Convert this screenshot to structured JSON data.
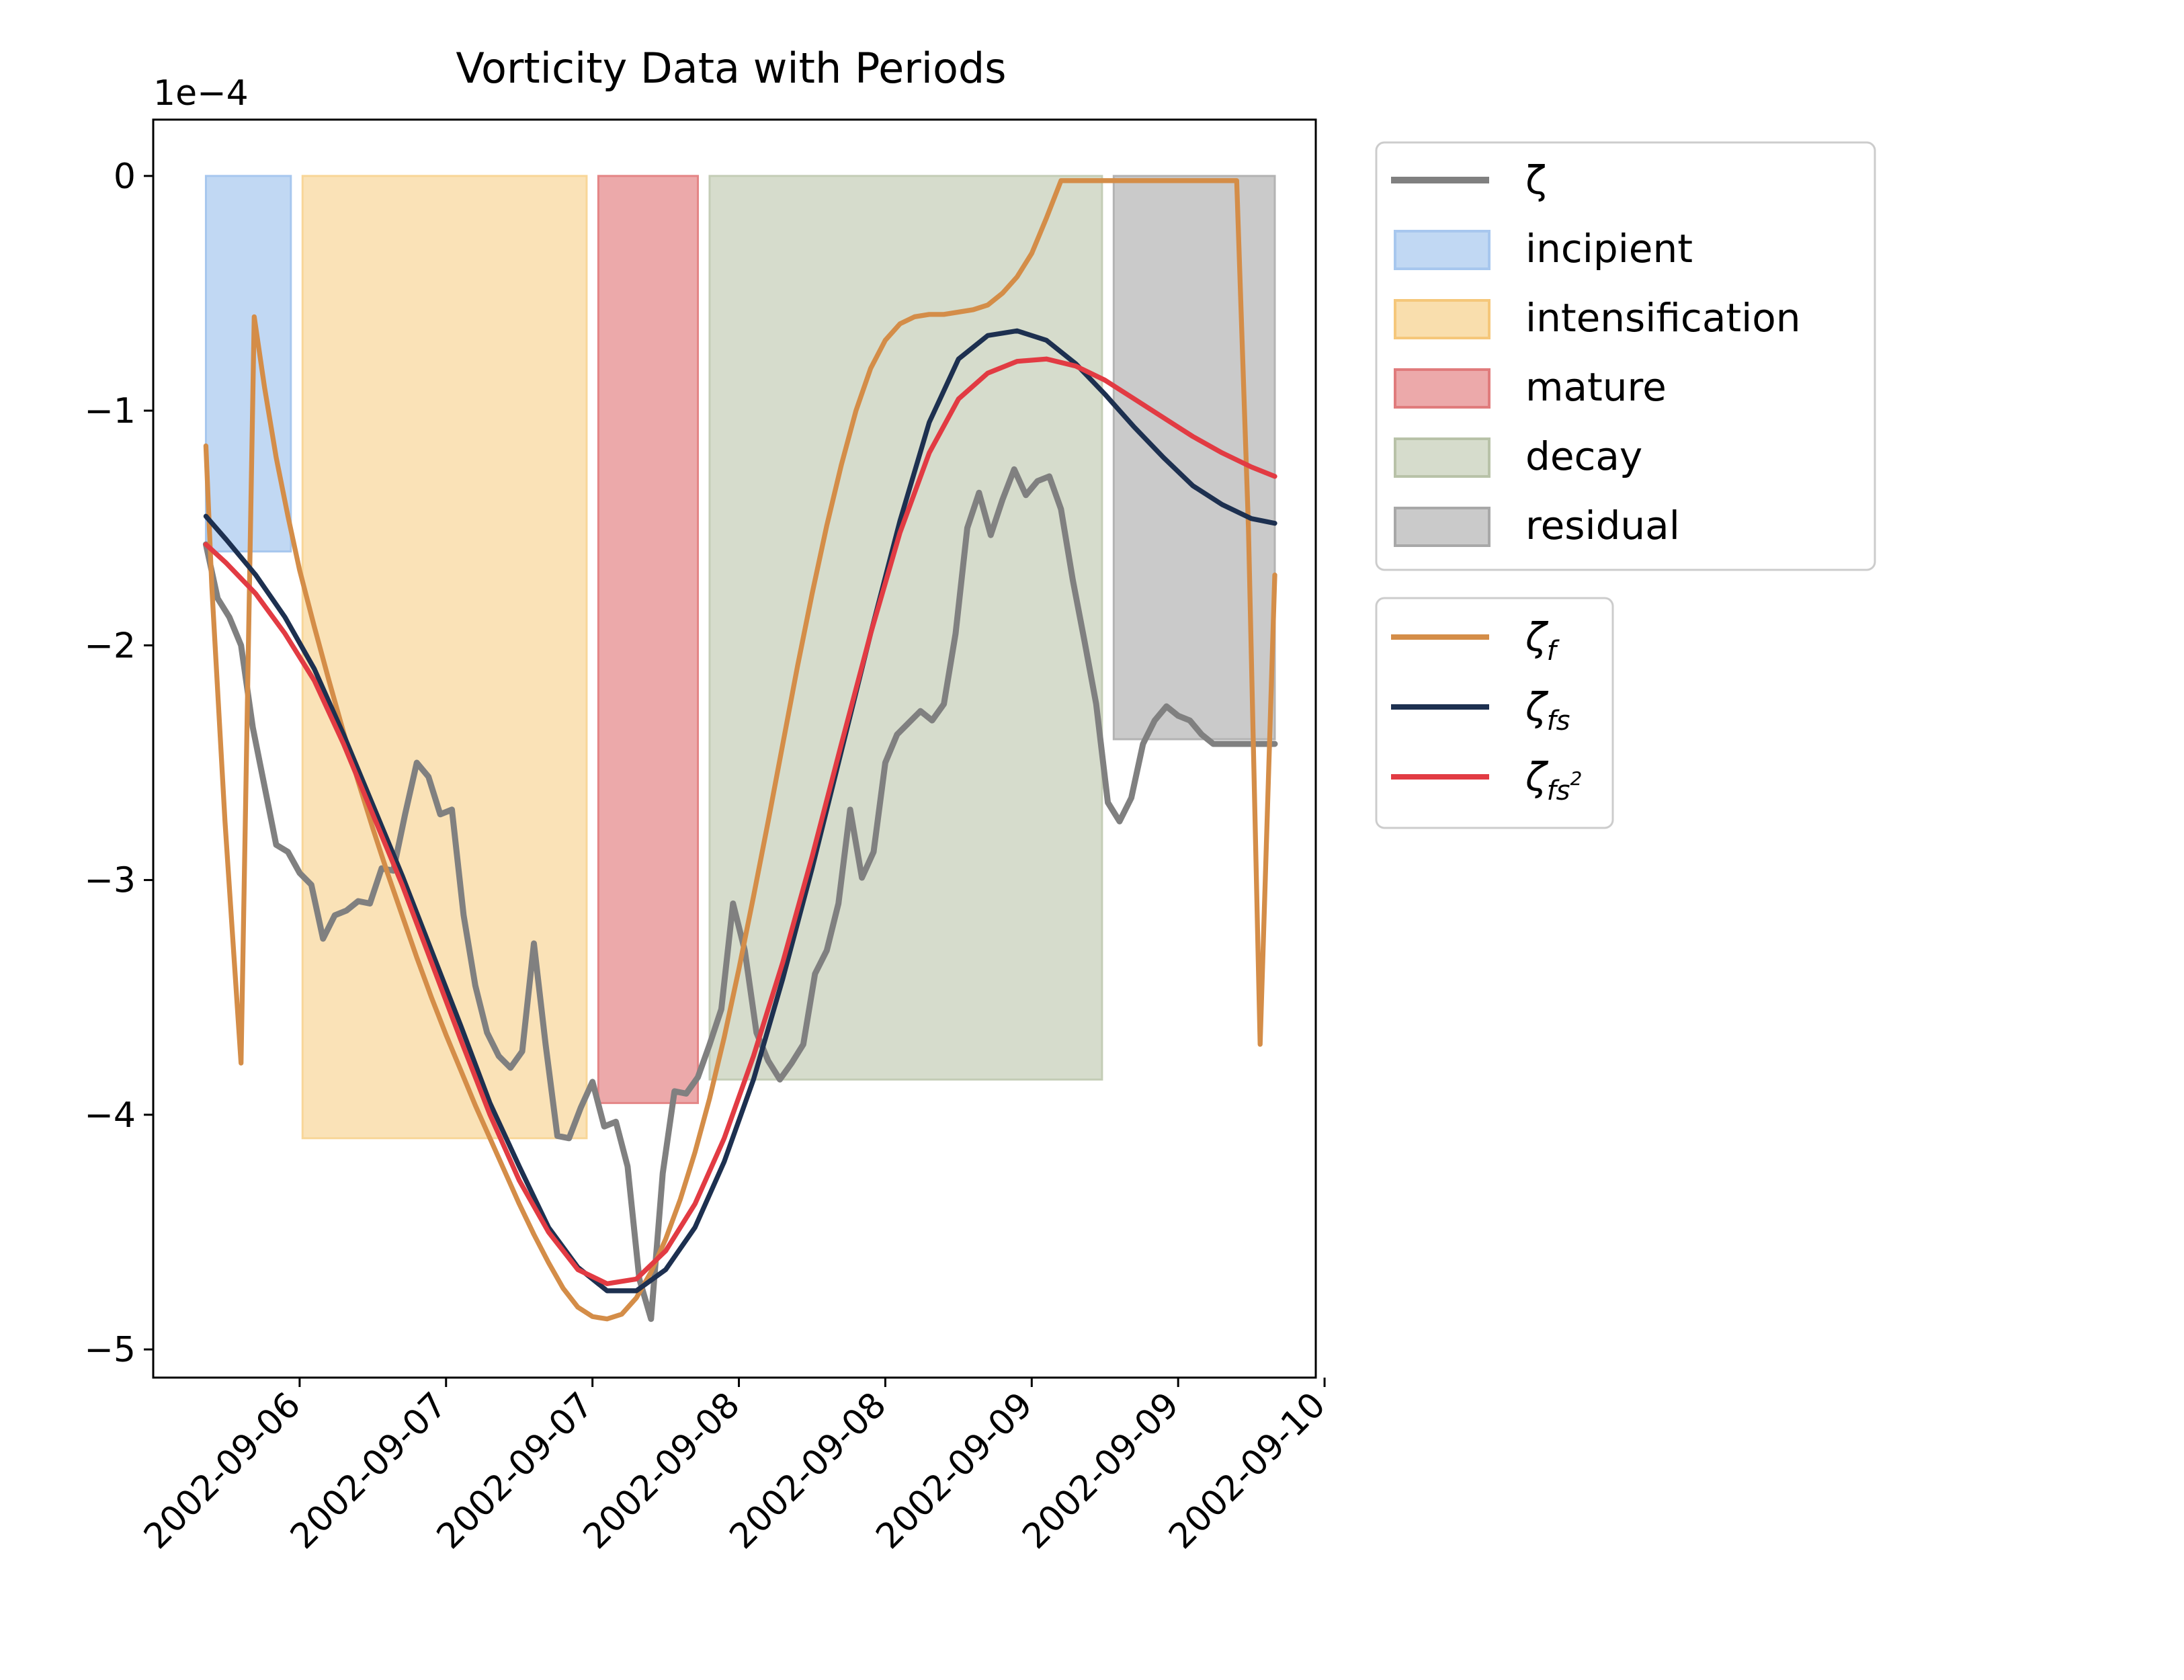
{
  "chart_data": {
    "type": "line",
    "title": "Vorticity Data with Periods",
    "xlabel": "",
    "ylabel": "",
    "y_scale_label": "1e−4",
    "ylim": [
      -5.12,
      0.24
    ],
    "xlim": [
      0.0,
      3.97
    ],
    "y_ticks": [
      0,
      -1,
      -2,
      -3,
      -4,
      -5
    ],
    "y_tick_labels": [
      "0",
      "−1",
      "−2",
      "−3",
      "−4",
      "−5"
    ],
    "x_ticks": [
      0.5,
      1.0,
      1.5,
      2.0,
      2.5,
      3.0,
      3.5,
      4.0
    ],
    "x_tick_labels": [
      "2002-09-06",
      "2002-09-07",
      "2002-09-07",
      "2002-09-08",
      "2002-09-08",
      "2002-09-09",
      "2002-09-09",
      "2002-09-10"
    ],
    "grid": false,
    "periods": [
      {
        "name": "incipient",
        "start": 0.18,
        "end": 0.47,
        "top": 0,
        "bottom": -1.6,
        "color": "#a7c7ee"
      },
      {
        "name": "intensification",
        "start": 0.51,
        "end": 1.48,
        "top": 0,
        "bottom": -4.1,
        "color": "#f8d698"
      },
      {
        "name": "mature",
        "start": 1.52,
        "end": 1.86,
        "top": 0,
        "bottom": -3.95,
        "color": "#e48586"
      },
      {
        "name": "decay",
        "start": 1.9,
        "end": 3.24,
        "top": 0,
        "bottom": -3.85,
        "color": "#c4cdb6"
      },
      {
        "name": "residual",
        "start": 3.28,
        "end": 3.83,
        "top": 0,
        "bottom": -2.4,
        "color": "#b3b3b3"
      }
    ],
    "series": [
      {
        "name": "ζ",
        "color": "#808080",
        "width": 3.2,
        "x": [
          0.18,
          0.22,
          0.26,
          0.3,
          0.34,
          0.38,
          0.42,
          0.46,
          0.5,
          0.54,
          0.58,
          0.62,
          0.66,
          0.7,
          0.74,
          0.78,
          0.82,
          0.86,
          0.9,
          0.94,
          0.98,
          1.02,
          1.06,
          1.1,
          1.14,
          1.18,
          1.22,
          1.26,
          1.3,
          1.34,
          1.38,
          1.42,
          1.46,
          1.5,
          1.54,
          1.58,
          1.62,
          1.66,
          1.7,
          1.74,
          1.78,
          1.82,
          1.86,
          1.9,
          1.94,
          1.98,
          2.02,
          2.06,
          2.1,
          2.14,
          2.18,
          2.22,
          2.26,
          2.3,
          2.34,
          2.38,
          2.42,
          2.46,
          2.5,
          2.54,
          2.58,
          2.62,
          2.66,
          2.7,
          2.74,
          2.78,
          2.82,
          2.86,
          2.9,
          2.94,
          2.98,
          3.02,
          3.06,
          3.1,
          3.14,
          3.18,
          3.22,
          3.26,
          3.3,
          3.34,
          3.38,
          3.42,
          3.46,
          3.5,
          3.54,
          3.58,
          3.62,
          3.66,
          3.7,
          3.74,
          3.78,
          3.83
        ],
        "y": [
          -1.57,
          -1.8,
          -1.88,
          -2.0,
          -2.35,
          -2.6,
          -2.85,
          -2.88,
          -2.97,
          -3.02,
          -3.25,
          -3.15,
          -3.13,
          -3.09,
          -3.1,
          -2.95,
          -2.96,
          -2.72,
          -2.5,
          -2.56,
          -2.72,
          -2.7,
          -3.15,
          -3.45,
          -3.65,
          -3.75,
          -3.8,
          -3.73,
          -3.27,
          -3.7,
          -4.09,
          -4.1,
          -3.97,
          -3.86,
          -4.05,
          -4.03,
          -4.22,
          -4.7,
          -4.87,
          -4.25,
          -3.9,
          -3.91,
          -3.84,
          -3.7,
          -3.55,
          -3.1,
          -3.3,
          -3.65,
          -3.77,
          -3.85,
          -3.78,
          -3.7,
          -3.4,
          -3.3,
          -3.1,
          -2.7,
          -2.99,
          -2.88,
          -2.5,
          -2.38,
          -2.33,
          -2.28,
          -2.32,
          -2.25,
          -1.95,
          -1.5,
          -1.35,
          -1.53,
          -1.38,
          -1.25,
          -1.36,
          -1.3,
          -1.28,
          -1.42,
          -1.72,
          -1.98,
          -2.25,
          -2.67,
          -2.75,
          -2.65,
          -2.42,
          -2.32,
          -2.26,
          -2.3,
          -2.32,
          -2.38,
          -2.42,
          -2.42,
          -2.42,
          -2.42,
          -2.42,
          -2.42
        ]
      },
      {
        "name": "ζf",
        "color": "#d48d48",
        "width": 2.6,
        "x": [
          0.18,
          0.2,
          0.245,
          0.3,
          0.345,
          0.38,
          0.42,
          0.46,
          0.5,
          0.55,
          0.6,
          0.65,
          0.7,
          0.75,
          0.8,
          0.85,
          0.9,
          0.95,
          1.0,
          1.05,
          1.1,
          1.15,
          1.2,
          1.25,
          1.3,
          1.35,
          1.4,
          1.45,
          1.5,
          1.55,
          1.6,
          1.65,
          1.7,
          1.75,
          1.8,
          1.85,
          1.9,
          1.95,
          2.0,
          2.05,
          2.1,
          2.15,
          2.2,
          2.25,
          2.3,
          2.35,
          2.4,
          2.45,
          2.5,
          2.55,
          2.6,
          2.65,
          2.7,
          2.75,
          2.8,
          2.85,
          2.9,
          2.95,
          3.0,
          3.05,
          3.1,
          3.15,
          3.2,
          3.25,
          3.3,
          3.35,
          3.4,
          3.45,
          3.5,
          3.55,
          3.6,
          3.65,
          3.7,
          3.74,
          3.78,
          3.83
        ],
        "y": [
          -1.15,
          -1.75,
          -2.75,
          -3.78,
          -0.6,
          -0.9,
          -1.2,
          -1.45,
          -1.68,
          -1.92,
          -2.15,
          -2.37,
          -2.58,
          -2.78,
          -2.97,
          -3.15,
          -3.33,
          -3.5,
          -3.66,
          -3.81,
          -3.96,
          -4.1,
          -4.24,
          -4.38,
          -4.51,
          -4.63,
          -4.74,
          -4.82,
          -4.86,
          -4.87,
          -4.85,
          -4.78,
          -4.67,
          -4.53,
          -4.36,
          -4.16,
          -3.93,
          -3.67,
          -3.38,
          -3.07,
          -2.75,
          -2.42,
          -2.09,
          -1.78,
          -1.49,
          -1.23,
          -1.0,
          -0.82,
          -0.7,
          -0.63,
          -0.6,
          -0.59,
          -0.59,
          -0.58,
          -0.57,
          -0.55,
          -0.5,
          -0.43,
          -0.33,
          -0.18,
          -0.02,
          -0.02,
          -0.02,
          -0.02,
          -0.02,
          -0.02,
          -0.02,
          -0.02,
          -0.02,
          -0.02,
          -0.02,
          -0.02,
          -0.02,
          -1.5,
          -3.7,
          -1.7
        ]
      },
      {
        "name": "ζfs",
        "color": "#1d3050",
        "width": 2.6,
        "x": [
          0.18,
          0.25,
          0.35,
          0.45,
          0.55,
          0.65,
          0.75,
          0.85,
          0.95,
          1.05,
          1.15,
          1.25,
          1.35,
          1.45,
          1.55,
          1.65,
          1.75,
          1.85,
          1.95,
          2.05,
          2.15,
          2.25,
          2.35,
          2.45,
          2.55,
          2.65,
          2.75,
          2.85,
          2.95,
          3.05,
          3.15,
          3.25,
          3.35,
          3.45,
          3.55,
          3.65,
          3.75,
          3.83
        ],
        "y": [
          -1.45,
          -1.55,
          -1.7,
          -1.88,
          -2.1,
          -2.38,
          -2.68,
          -2.98,
          -3.3,
          -3.62,
          -3.95,
          -4.22,
          -4.48,
          -4.65,
          -4.75,
          -4.75,
          -4.66,
          -4.48,
          -4.2,
          -3.85,
          -3.42,
          -2.95,
          -2.45,
          -1.95,
          -1.47,
          -1.05,
          -0.78,
          -0.68,
          -0.66,
          -0.7,
          -0.8,
          -0.93,
          -1.07,
          -1.2,
          -1.32,
          -1.4,
          -1.46,
          -1.48
        ]
      },
      {
        "name": "ζfs²",
        "color": "#e23b43",
        "width": 2.6,
        "x": [
          0.18,
          0.25,
          0.35,
          0.45,
          0.55,
          0.65,
          0.75,
          0.85,
          0.95,
          1.05,
          1.15,
          1.25,
          1.35,
          1.45,
          1.55,
          1.65,
          1.75,
          1.85,
          1.95,
          2.05,
          2.15,
          2.25,
          2.35,
          2.45,
          2.55,
          2.65,
          2.75,
          2.85,
          2.95,
          3.05,
          3.15,
          3.25,
          3.35,
          3.45,
          3.55,
          3.65,
          3.75,
          3.83
        ],
        "y": [
          -1.57,
          -1.65,
          -1.78,
          -1.95,
          -2.15,
          -2.42,
          -2.72,
          -3.02,
          -3.35,
          -3.68,
          -4.0,
          -4.28,
          -4.5,
          -4.66,
          -4.72,
          -4.7,
          -4.58,
          -4.38,
          -4.1,
          -3.75,
          -3.35,
          -2.9,
          -2.42,
          -1.95,
          -1.52,
          -1.18,
          -0.95,
          -0.84,
          -0.79,
          -0.78,
          -0.81,
          -0.87,
          -0.95,
          -1.03,
          -1.11,
          -1.18,
          -1.24,
          -1.28
        ]
      }
    ],
    "legend_periods": {
      "placement": "upper-right-outside",
      "entries": [
        "ζ",
        "incipient",
        "intensification",
        "mature",
        "decay",
        "residual"
      ]
    },
    "legend_fits": {
      "placement": "right-outside",
      "entries": [
        "ζf",
        "ζfs",
        "ζfs²"
      ]
    }
  },
  "legend": {
    "zeta": "ζ",
    "incipient": "incipient",
    "intensification": "intensification",
    "mature": "mature",
    "decay": "decay",
    "residual": "residual",
    "zeta_symbol": "ζ",
    "sub_f": "f",
    "sub_fs": "fs",
    "sup_2": "2"
  }
}
